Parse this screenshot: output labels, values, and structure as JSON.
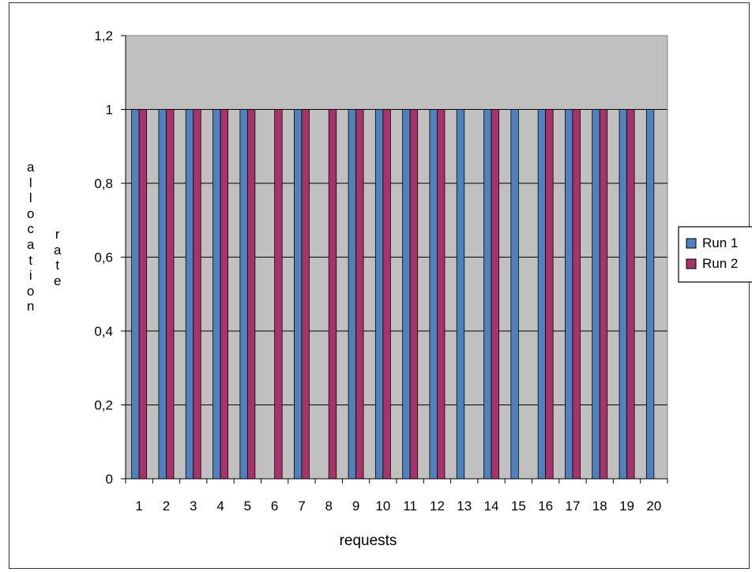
{
  "chart_data": {
    "type": "bar",
    "xlabel": "requests",
    "ylabel": "allocation rate",
    "ylabel_words": [
      "allocation",
      "rate"
    ],
    "categories": [
      "1",
      "2",
      "3",
      "4",
      "5",
      "6",
      "7",
      "8",
      "9",
      "10",
      "11",
      "12",
      "13",
      "14",
      "15",
      "16",
      "17",
      "18",
      "19",
      "20"
    ],
    "series": [
      {
        "name": "Run 1",
        "values": [
          1,
          1,
          1,
          1,
          1,
          0,
          1,
          0,
          1,
          1,
          1,
          1,
          1,
          1,
          1,
          1,
          1,
          1,
          1,
          1
        ]
      },
      {
        "name": "Run 2",
        "values": [
          1,
          1,
          1,
          1,
          1,
          1,
          1,
          1,
          1,
          1,
          1,
          1,
          0,
          1,
          0,
          1,
          1,
          1,
          1,
          0
        ]
      }
    ],
    "ylim": [
      0,
      1.2
    ],
    "yticks": [
      0,
      0.2,
      0.4,
      0.6,
      0.8,
      1,
      1.2
    ],
    "ytick_labels": [
      "0",
      "0,2",
      "0,4",
      "0,6",
      "0,8",
      "1",
      "1,2"
    ],
    "grid": true,
    "legend_position": "right",
    "colors": {
      "run1": "#4f81bd",
      "run2": "#a8336b",
      "plot_background": "#c0c0c0",
      "grid": "#000000"
    }
  }
}
